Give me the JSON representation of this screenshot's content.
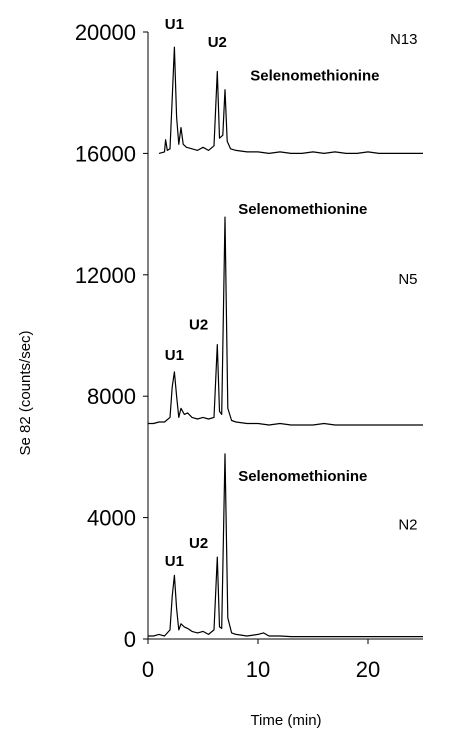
{
  "chart_data": {
    "type": "line",
    "title": "",
    "xlabel": "Time (min)",
    "ylabel": "Se 82 (counts/sec)",
    "xlim": [
      0,
      25
    ],
    "ylim": [
      0,
      20000
    ],
    "x_ticks": [
      0,
      10,
      20
    ],
    "y_ticks": [
      0,
      4000,
      8000,
      12000,
      16000,
      20000
    ],
    "grid": false,
    "series": [
      {
        "name": "N13",
        "points": [
          [
            1.0,
            16000
          ],
          [
            1.5,
            16050
          ],
          [
            1.6,
            16450
          ],
          [
            1.75,
            16100
          ],
          [
            2.0,
            16150
          ],
          [
            2.2,
            17800
          ],
          [
            2.4,
            19500
          ],
          [
            2.6,
            17200
          ],
          [
            2.8,
            16300
          ],
          [
            3.0,
            16850
          ],
          [
            3.2,
            16300
          ],
          [
            3.5,
            16200
          ],
          [
            4.0,
            16150
          ],
          [
            4.5,
            16100
          ],
          [
            5.0,
            16200
          ],
          [
            5.5,
            16100
          ],
          [
            6.0,
            16250
          ],
          [
            6.3,
            18700
          ],
          [
            6.5,
            16500
          ],
          [
            6.8,
            16600
          ],
          [
            7.0,
            18100
          ],
          [
            7.2,
            16400
          ],
          [
            7.5,
            16150
          ],
          [
            8.0,
            16100
          ],
          [
            9.0,
            16050
          ],
          [
            10.0,
            16050
          ],
          [
            11.0,
            16000
          ],
          [
            12.0,
            16050
          ],
          [
            13.0,
            16000
          ],
          [
            14.0,
            16000
          ],
          [
            15.0,
            16050
          ],
          [
            16.0,
            16000
          ],
          [
            17.0,
            16050
          ],
          [
            18.0,
            16000
          ],
          [
            19.0,
            16000
          ],
          [
            20.0,
            16050
          ],
          [
            21.0,
            16000
          ],
          [
            22.0,
            16000
          ],
          [
            23.0,
            16000
          ],
          [
            24.0,
            16000
          ],
          [
            25.0,
            16000
          ]
        ]
      },
      {
        "name": "N5",
        "points": [
          [
            0.0,
            7100
          ],
          [
            0.5,
            7100
          ],
          [
            1.0,
            7150
          ],
          [
            1.5,
            7150
          ],
          [
            2.0,
            7300
          ],
          [
            2.2,
            8300
          ],
          [
            2.4,
            8800
          ],
          [
            2.6,
            8000
          ],
          [
            2.8,
            7300
          ],
          [
            3.0,
            7600
          ],
          [
            3.3,
            7400
          ],
          [
            3.6,
            7450
          ],
          [
            4.0,
            7300
          ],
          [
            4.5,
            7250
          ],
          [
            5.0,
            7300
          ],
          [
            5.5,
            7250
          ],
          [
            6.0,
            7300
          ],
          [
            6.3,
            9700
          ],
          [
            6.5,
            7500
          ],
          [
            6.7,
            7400
          ],
          [
            7.0,
            13900
          ],
          [
            7.25,
            7600
          ],
          [
            7.6,
            7200
          ],
          [
            8.0,
            7150
          ],
          [
            9.0,
            7100
          ],
          [
            10.0,
            7100
          ],
          [
            11.0,
            7050
          ],
          [
            12.0,
            7100
          ],
          [
            13.0,
            7050
          ],
          [
            14.0,
            7050
          ],
          [
            15.0,
            7050
          ],
          [
            16.0,
            7100
          ],
          [
            17.0,
            7050
          ],
          [
            18.0,
            7050
          ],
          [
            19.0,
            7050
          ],
          [
            20.0,
            7050
          ],
          [
            21.0,
            7050
          ],
          [
            22.0,
            7050
          ],
          [
            23.0,
            7050
          ],
          [
            24.0,
            7050
          ],
          [
            25.0,
            7050
          ]
        ]
      },
      {
        "name": "N2",
        "points": [
          [
            0.0,
            100
          ],
          [
            0.5,
            100
          ],
          [
            1.0,
            150
          ],
          [
            1.5,
            100
          ],
          [
            2.0,
            300
          ],
          [
            2.2,
            1400
          ],
          [
            2.4,
            2100
          ],
          [
            2.6,
            1000
          ],
          [
            2.8,
            300
          ],
          [
            3.0,
            500
          ],
          [
            3.3,
            400
          ],
          [
            3.6,
            350
          ],
          [
            4.0,
            250
          ],
          [
            4.5,
            200
          ],
          [
            5.0,
            250
          ],
          [
            5.5,
            150
          ],
          [
            6.0,
            300
          ],
          [
            6.3,
            2700
          ],
          [
            6.5,
            400
          ],
          [
            6.7,
            350
          ],
          [
            7.0,
            6100
          ],
          [
            7.25,
            700
          ],
          [
            7.6,
            200
          ],
          [
            8.0,
            150
          ],
          [
            9.0,
            100
          ],
          [
            10.0,
            150
          ],
          [
            10.5,
            200
          ],
          [
            11.0,
            100
          ],
          [
            12.0,
            100
          ],
          [
            13.0,
            80
          ],
          [
            14.0,
            80
          ],
          [
            15.0,
            80
          ],
          [
            16.0,
            80
          ],
          [
            17.0,
            80
          ],
          [
            18.0,
            80
          ],
          [
            19.0,
            80
          ],
          [
            20.0,
            80
          ],
          [
            21.0,
            80
          ],
          [
            22.0,
            80
          ],
          [
            23.0,
            80
          ],
          [
            24.0,
            80
          ],
          [
            25.0,
            80
          ]
        ]
      }
    ],
    "annotations": [
      {
        "text": "U1",
        "x": 2.4,
        "y": 20100,
        "bold": true,
        "anchor": "middle"
      },
      {
        "text": "U2",
        "x": 6.3,
        "y": 19500,
        "bold": true,
        "anchor": "middle"
      },
      {
        "text": "Selenomethionine",
        "x": 9.3,
        "y": 18400,
        "bold": true,
        "anchor": "start"
      },
      {
        "text": "N13",
        "x": 24.5,
        "y": 19600,
        "bold": false,
        "anchor": "end"
      },
      {
        "text": "Selenomethionine",
        "x": 8.2,
        "y": 14000,
        "bold": true,
        "anchor": "start"
      },
      {
        "text": "N5",
        "x": 24.5,
        "y": 11700,
        "bold": false,
        "anchor": "end"
      },
      {
        "text": "U2",
        "x": 4.6,
        "y": 10200,
        "bold": true,
        "anchor": "middle"
      },
      {
        "text": "U1",
        "x": 2.4,
        "y": 9200,
        "bold": true,
        "anchor": "middle"
      },
      {
        "text": "Selenomethionine",
        "x": 8.2,
        "y": 5200,
        "bold": true,
        "anchor": "start"
      },
      {
        "text": "N2",
        "x": 24.5,
        "y": 3600,
        "bold": false,
        "anchor": "end"
      },
      {
        "text": "U2",
        "x": 4.6,
        "y": 3000,
        "bold": true,
        "anchor": "middle"
      },
      {
        "text": "U1",
        "x": 2.4,
        "y": 2400,
        "bold": true,
        "anchor": "middle"
      }
    ]
  }
}
